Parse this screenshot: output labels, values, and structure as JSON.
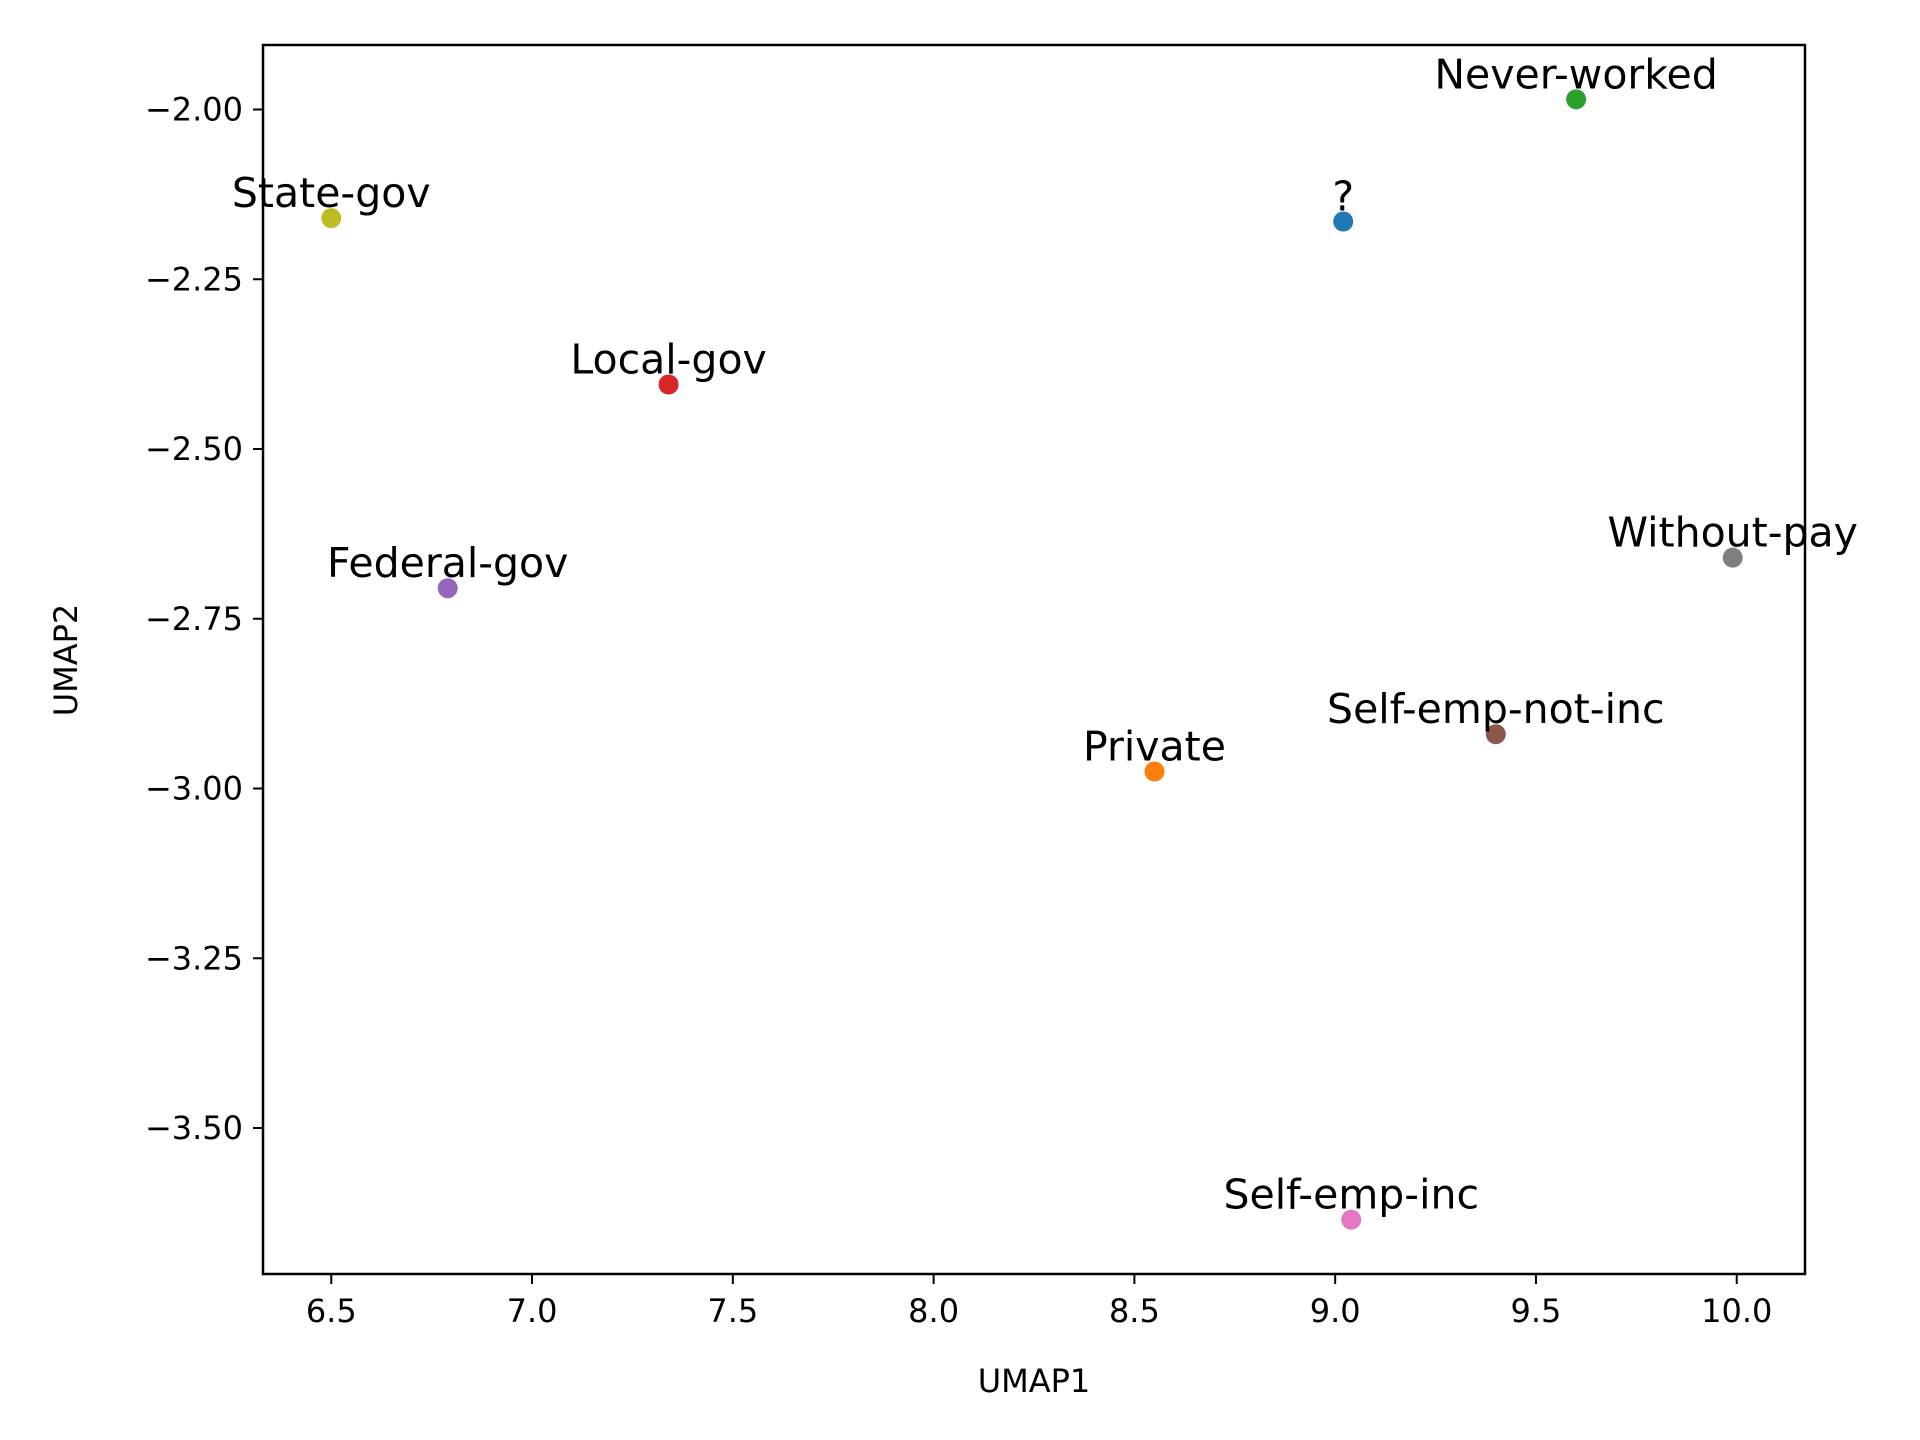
{
  "chart_data": {
    "type": "scatter",
    "title": "",
    "xlabel": "UMAP1",
    "ylabel": "UMAP2",
    "xlim": [
      6.33,
      10.17
    ],
    "ylim": [
      -3.715,
      -1.905
    ],
    "x_ticks": [
      6.5,
      7.0,
      7.5,
      8.0,
      8.5,
      9.0,
      9.5,
      10.0
    ],
    "x_tick_labels": [
      "6.5",
      "7.0",
      "7.5",
      "8.0",
      "8.5",
      "9.0",
      "9.5",
      "10.0"
    ],
    "y_ticks": [
      -2.0,
      -2.25,
      -2.5,
      -2.75,
      -3.0,
      -3.25,
      -3.5
    ],
    "y_tick_labels": [
      "−2.00",
      "−2.25",
      "−2.50",
      "−2.75",
      "−3.00",
      "−3.25",
      "−3.50"
    ],
    "grid": false,
    "legend": false,
    "points": [
      {
        "label": "?",
        "x": 9.02,
        "y": -2.165,
        "color": "#1f77b4"
      },
      {
        "label": "Private",
        "x": 8.55,
        "y": -2.975,
        "color": "#ff7f0e"
      },
      {
        "label": "Never-worked",
        "x": 9.6,
        "y": -1.985,
        "color": "#2ca02c"
      },
      {
        "label": "Local-gov",
        "x": 7.34,
        "y": -2.405,
        "color": "#d62728"
      },
      {
        "label": "Federal-gov",
        "x": 6.79,
        "y": -2.705,
        "color": "#9467bd"
      },
      {
        "label": "Self-emp-not-inc",
        "x": 9.4,
        "y": -2.92,
        "color": "#8c564b"
      },
      {
        "label": "Self-emp-inc",
        "x": 9.04,
        "y": -3.635,
        "color": "#e377c2"
      },
      {
        "label": "Without-pay",
        "x": 9.99,
        "y": -2.66,
        "color": "#7f7f7f"
      },
      {
        "label": "State-gov",
        "x": 6.5,
        "y": -2.16,
        "color": "#bcbd22"
      }
    ]
  }
}
